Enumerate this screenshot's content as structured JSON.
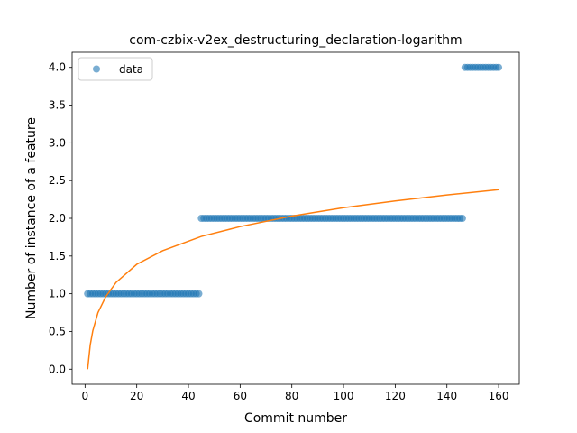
{
  "chart_data": {
    "type": "scatter",
    "title": "com-czbix-v2ex_destructuring_declaration-logarithm",
    "xlabel": "Commit number",
    "ylabel": "Number of instance of a feature",
    "xlim": [
      -5,
      168
    ],
    "ylim": [
      -0.2,
      4.2
    ],
    "xticks": [
      0,
      20,
      40,
      60,
      80,
      100,
      120,
      140,
      160
    ],
    "yticks": [
      0.0,
      0.5,
      1.0,
      1.5,
      2.0,
      2.5,
      3.0,
      3.5,
      4.0
    ],
    "xtick_labels": [
      "0",
      "20",
      "40",
      "60",
      "80",
      "100",
      "120",
      "140",
      "160"
    ],
    "ytick_labels": [
      "0.0",
      "0.5",
      "1.0",
      "1.5",
      "2.0",
      "2.5",
      "3.0",
      "3.5",
      "4.0"
    ],
    "legend": {
      "placement": "upper-left",
      "entries": [
        "data"
      ]
    },
    "grid": false,
    "series": [
      {
        "name": "data",
        "kind": "points",
        "color": "#1f77b4",
        "segments": [
          {
            "x_start": 1,
            "x_end": 44,
            "y": 1
          },
          {
            "x_start": 45,
            "x_end": 146,
            "y": 2
          },
          {
            "x_start": 147,
            "x_end": 160,
            "y": 4
          }
        ]
      },
      {
        "kind": "line",
        "color": "#ff7f0e",
        "fit": "logarithmic",
        "points": [
          [
            1,
            0.0
          ],
          [
            2,
            0.32
          ],
          [
            3,
            0.51
          ],
          [
            5,
            0.75
          ],
          [
            8,
            0.96
          ],
          [
            12,
            1.15
          ],
          [
            20,
            1.39
          ],
          [
            30,
            1.57
          ],
          [
            45,
            1.76
          ],
          [
            60,
            1.89
          ],
          [
            80,
            2.03
          ],
          [
            100,
            2.14
          ],
          [
            120,
            2.23
          ],
          [
            140,
            2.31
          ],
          [
            160,
            2.38
          ]
        ]
      }
    ]
  }
}
